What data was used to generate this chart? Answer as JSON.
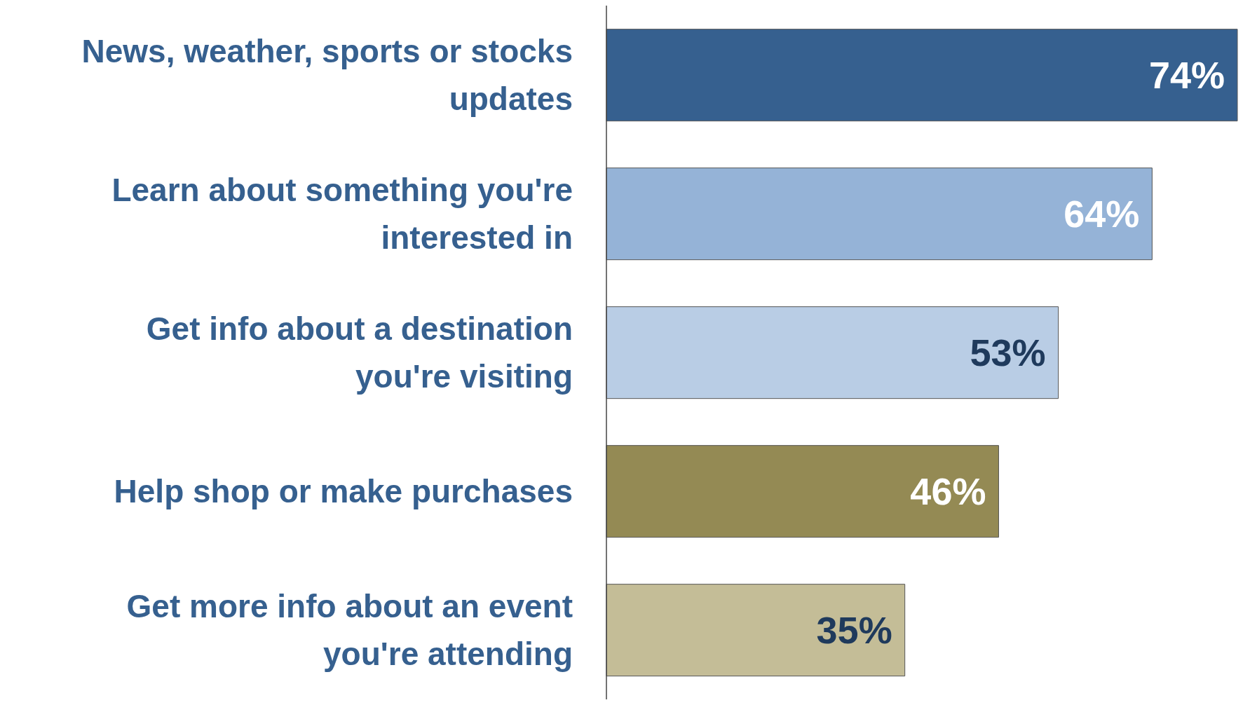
{
  "chart_data": {
    "type": "bar",
    "orientation": "horizontal",
    "categories": [
      "News, weather, sports or stocks updates",
      "Learn about something you're interested in",
      "Get info about a destination you're visiting",
      "Help shop or make purchases",
      "Get more info about an event you're attending"
    ],
    "values": [
      74,
      64,
      53,
      46,
      35
    ],
    "colors": [
      "#36608f",
      "#95b3d7",
      "#b9cde5",
      "#948a54",
      "#c4bd97"
    ],
    "data_labels": true,
    "value_labels": [
      "74%",
      "64%",
      "53%",
      "46%",
      "35%"
    ]
  }
}
